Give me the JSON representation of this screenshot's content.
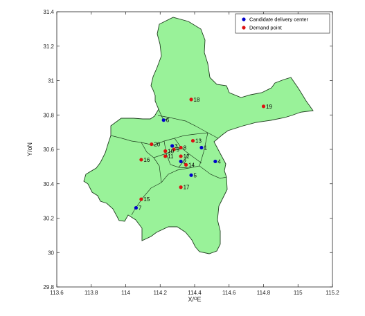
{
  "chart_data": {
    "type": "scatter",
    "xlabel": "X/ᴼE",
    "ylabel": "Y/oN",
    "xlim": [
      113.6,
      115.2
    ],
    "ylim": [
      29.8,
      31.4
    ],
    "x_ticks": [
      "113.6",
      "113.8",
      "114",
      "114.2",
      "114.4",
      "114.6",
      "114.8",
      "115",
      "115.2"
    ],
    "y_ticks": [
      "29.8",
      "30",
      "30.2",
      "30.4",
      "30.6",
      "30.8",
      "31",
      "31.2",
      "31.4"
    ],
    "legend_position": "top-right",
    "colors": {
      "region_fill": "#99f299",
      "region_edge": "#1e3c1e",
      "candidate": "#0000cc",
      "demand": "#dd1111"
    },
    "series": [
      {
        "name": "Candidate delivery center",
        "points": [
          {
            "label": "1",
            "x": 114.44,
            "y": 30.61
          },
          {
            "label": "2",
            "x": 114.32,
            "y": 30.53
          },
          {
            "label": "3",
            "x": 114.27,
            "y": 30.62
          },
          {
            "label": "4",
            "x": 114.52,
            "y": 30.53
          },
          {
            "label": "5",
            "x": 114.38,
            "y": 30.45
          },
          {
            "label": "6",
            "x": 114.22,
            "y": 30.77
          },
          {
            "label": "7",
            "x": 114.06,
            "y": 30.26
          }
        ]
      },
      {
        "name": "Demand point",
        "points": [
          {
            "label": "8",
            "x": 114.32,
            "y": 30.61
          },
          {
            "label": "9",
            "x": 114.28,
            "y": 30.6
          },
          {
            "label": "10",
            "x": 114.23,
            "y": 30.59
          },
          {
            "label": "11",
            "x": 114.23,
            "y": 30.56
          },
          {
            "label": "12",
            "x": 114.32,
            "y": 30.56
          },
          {
            "label": "13",
            "x": 114.39,
            "y": 30.65
          },
          {
            "label": "14",
            "x": 114.35,
            "y": 30.51
          },
          {
            "label": "15",
            "x": 114.09,
            "y": 30.31
          },
          {
            "label": "16",
            "x": 114.09,
            "y": 30.54
          },
          {
            "label": "17",
            "x": 114.32,
            "y": 30.38
          },
          {
            "label": "18",
            "x": 114.38,
            "y": 30.89
          },
          {
            "label": "19",
            "x": 114.8,
            "y": 30.85
          },
          {
            "label": "20",
            "x": 114.15,
            "y": 30.63
          }
        ]
      }
    ]
  }
}
